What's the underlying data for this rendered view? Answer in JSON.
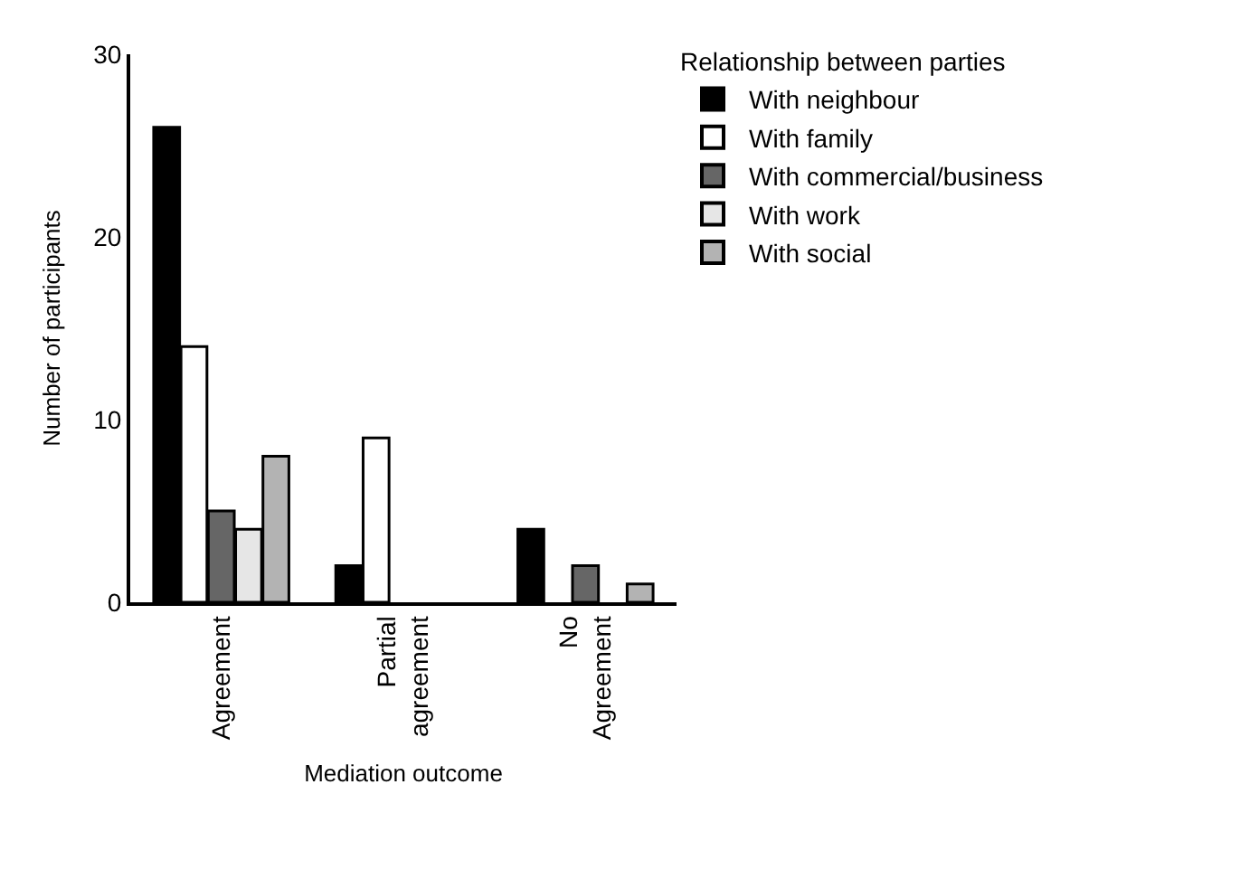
{
  "chart_data": {
    "type": "bar",
    "xlabel": "Mediation outcome",
    "ylabel": "Number of participants",
    "legend_title": "Relationship between parties",
    "categories": [
      "Agreement",
      "Partial\nagreement",
      "No\nAgreement"
    ],
    "series": [
      {
        "name": "With neighbour",
        "color": "#000000",
        "values": [
          26,
          2,
          4
        ]
      },
      {
        "name": "With family",
        "color": "#ffffff",
        "values": [
          14,
          9,
          0
        ]
      },
      {
        "name": "With commercial/business",
        "color": "#666666",
        "values": [
          5,
          0,
          2
        ]
      },
      {
        "name": "With work",
        "color": "#e6e6e6",
        "values": [
          4,
          0,
          0
        ]
      },
      {
        "name": "With social",
        "color": "#b3b3b3",
        "values": [
          8,
          0,
          1
        ]
      }
    ],
    "ylim": [
      0,
      30
    ],
    "yticks": [
      0,
      10,
      20,
      30
    ],
    "legend": "top right"
  }
}
